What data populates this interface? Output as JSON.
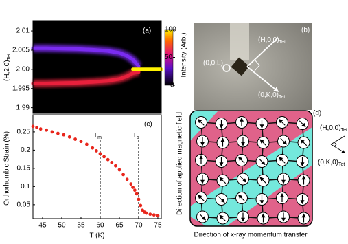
{
  "chart_data": [
    {
      "type": "heatmap",
      "label": "(a)",
      "ylabel": "(H,2,0)",
      "ylabel_sub": "Tet",
      "xlim": [
        42.5,
        75.9
      ],
      "ylim": [
        1.9885,
        2.0127
      ],
      "yticks": [
        1.99,
        1.995,
        {
          "value": 2,
          "label": "2.00"
        },
        2.005,
        2.01
      ],
      "x": [
        42.5,
        46,
        50,
        54,
        58,
        62,
        65,
        67,
        68.5,
        70,
        72,
        75.9
      ],
      "series": [
        {
          "color": "#7a2cf0",
          "values": [
            2.0055,
            2.0055,
            2.0054,
            2.0053,
            2.0051,
            2.0048,
            2.0043,
            2.0035,
            2.0025,
            2.0008,
            null,
            null
          ]
        },
        {
          "color": "#e8203c",
          "values": [
            1.9963,
            1.9963,
            1.9964,
            1.9965,
            1.9967,
            1.997,
            1.9975,
            1.9982,
            1.999,
            1.9993,
            null,
            null
          ]
        },
        {
          "color": "#fff200",
          "values": [
            null,
            null,
            null,
            null,
            null,
            null,
            null,
            null,
            2,
            2,
            2,
            2
          ]
        }
      ],
      "colorbar_label": "Intensity (Arb.)",
      "colorbar_lim": [
        0,
        100
      ],
      "colorbar_ticks": [
        0,
        50,
        100
      ]
    },
    {
      "type": "scatter",
      "label": "(c)",
      "xlabel": "T (K)",
      "ylabel": "Orthorhombic Strain (%)",
      "color": "#e8261c",
      "xlim": [
        42.5,
        75.9
      ],
      "ylim": [
        0.012,
        0.297
      ],
      "xticks": [
        45,
        50,
        55,
        60,
        65,
        70,
        75
      ],
      "yticks": [
        0.05,
        0.1,
        0.15,
        0.2,
        0.25
      ],
      "x": [
        42.5,
        43.5,
        44.5,
        46,
        47.5,
        49,
        50.5,
        52,
        53.5,
        55,
        56.5,
        58,
        59,
        60,
        61,
        62,
        63,
        64,
        65,
        66,
        67,
        68,
        68.5,
        69,
        69.5,
        70,
        70.5,
        71,
        71.5,
        72,
        73,
        74,
        75
      ],
      "values": [
        0.265,
        0.262,
        0.258,
        0.255,
        0.25,
        0.246,
        0.242,
        0.236,
        0.23,
        0.224,
        0.216,
        0.206,
        0.198,
        0.19,
        0.182,
        0.174,
        0.166,
        0.157,
        0.146,
        0.133,
        0.12,
        0.107,
        0.098,
        0.09,
        0.08,
        0.065,
        0.048,
        0.035,
        0.03,
        0.027,
        0.024,
        0.022,
        0.02
      ],
      "annotations": [
        {
          "text": "T",
          "sub": "m",
          "x": 60
        },
        {
          "text": "T",
          "sub": "s",
          "x": 70
        }
      ]
    }
  ],
  "photo": {
    "label": "(b)",
    "axis_l": "(0,0,L)",
    "axis_h": "(H,0,0)",
    "axis_k": "(0,K,0)",
    "sub": "Tet"
  },
  "diagram": {
    "label": "(d)",
    "axis_h": "(H,0,0)",
    "axis_k": "(0,K,0)",
    "sub": "Tet",
    "ylabel": "Direction of applied magnetic field",
    "xlabel": "Direction of x-ray momentum transfer"
  }
}
